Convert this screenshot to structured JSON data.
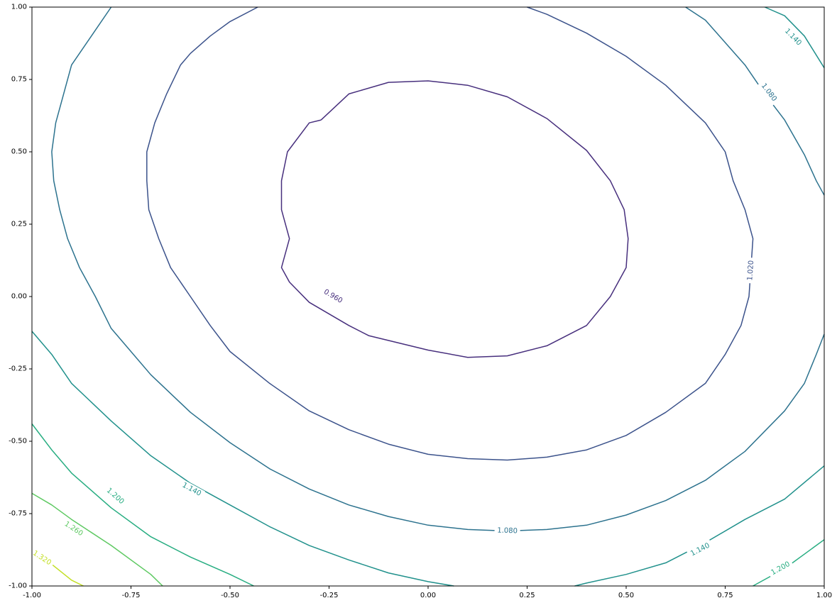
{
  "chart_data": {
    "type": "contour",
    "title": "",
    "xlabel": "",
    "ylabel": "",
    "xlim": [
      -1.0,
      1.0
    ],
    "ylim": [
      -1.0,
      1.0
    ],
    "xticks": [
      "-1.00",
      "-0.75",
      "-0.50",
      "-0.25",
      "0.00",
      "0.25",
      "0.50",
      "0.75",
      "1.00"
    ],
    "yticks": [
      "-1.00",
      "-0.75",
      "-0.50",
      "-0.25",
      "0.00",
      "0.25",
      "0.50",
      "0.75",
      "1.00"
    ],
    "grid": false,
    "colormap": "viridis",
    "levels": [
      {
        "value": 0.96,
        "label": "0.960",
        "color": "#472f7d",
        "paths": [
          [
            [
              -0.27,
              0.61
            ],
            [
              -0.2,
              0.7
            ],
            [
              -0.1,
              0.74
            ],
            [
              0.0,
              0.745
            ],
            [
              0.1,
              0.73
            ],
            [
              0.2,
              0.69
            ],
            [
              0.3,
              0.615
            ],
            [
              0.4,
              0.505
            ],
            [
              0.46,
              0.4
            ],
            [
              0.495,
              0.3
            ],
            [
              0.505,
              0.2
            ],
            [
              0.5,
              0.1
            ],
            [
              0.46,
              0.0
            ],
            [
              0.4,
              -0.1
            ],
            [
              0.3,
              -0.17
            ],
            [
              0.2,
              -0.205
            ],
            [
              0.1,
              -0.21
            ],
            [
              0.0,
              -0.185
            ],
            [
              -0.15,
              -0.135
            ],
            [
              -0.2,
              -0.1
            ],
            [
              -0.3,
              -0.02
            ],
            [
              -0.35,
              0.05
            ],
            [
              -0.37,
              0.1
            ],
            [
              -0.35,
              0.2
            ],
            [
              -0.37,
              0.3
            ],
            [
              -0.37,
              0.4
            ],
            [
              -0.355,
              0.5
            ],
            [
              -0.3,
              0.6
            ],
            [
              -0.27,
              0.61
            ]
          ]
        ],
        "label_at": [
          -0.24,
          0.0
        ]
      },
      {
        "value": 1.02,
        "label": "1.020",
        "color": "#3b528b",
        "paths": [
          [
            [
              -0.43,
              1.0
            ],
            [
              -0.5,
              0.95
            ],
            [
              -0.55,
              0.9
            ],
            [
              -0.6,
              0.84
            ],
            [
              -0.625,
              0.8
            ],
            [
              -0.66,
              0.7
            ],
            [
              -0.69,
              0.6
            ],
            [
              -0.71,
              0.5
            ],
            [
              -0.71,
              0.4
            ],
            [
              -0.705,
              0.3
            ],
            [
              -0.68,
              0.2
            ],
            [
              -0.65,
              0.1
            ],
            [
              -0.6,
              0.0
            ],
            [
              -0.55,
              -0.1
            ],
            [
              -0.5,
              -0.19
            ],
            [
              -0.4,
              -0.3
            ],
            [
              -0.3,
              -0.395
            ],
            [
              -0.2,
              -0.46
            ],
            [
              -0.1,
              -0.51
            ],
            [
              0.0,
              -0.545
            ],
            [
              0.1,
              -0.56
            ],
            [
              0.2,
              -0.565
            ],
            [
              0.3,
              -0.555
            ],
            [
              0.4,
              -0.53
            ],
            [
              0.5,
              -0.48
            ],
            [
              0.6,
              -0.4
            ],
            [
              0.7,
              -0.3
            ],
            [
              0.75,
              -0.2
            ],
            [
              0.79,
              -0.1
            ],
            [
              0.81,
              0.0
            ],
            [
              0.815,
              0.1
            ],
            [
              0.82,
              0.2
            ],
            [
              0.8,
              0.3
            ],
            [
              0.77,
              0.4
            ],
            [
              0.75,
              0.5
            ],
            [
              0.7,
              0.6
            ],
            [
              0.6,
              0.73
            ],
            [
              0.5,
              0.83
            ],
            [
              0.4,
              0.91
            ],
            [
              0.3,
              0.975
            ],
            [
              0.25,
              1.0
            ]
          ]
        ],
        "label_at": [
          0.815,
          0.09
        ]
      },
      {
        "value": 1.08,
        "label": "1.080",
        "color": "#2c728e",
        "paths": [
          [
            [
              -0.8,
              1.0
            ],
            [
              -0.85,
              0.9
            ],
            [
              -0.9,
              0.8
            ],
            [
              -0.94,
              0.6
            ],
            [
              -0.95,
              0.5
            ],
            [
              -0.945,
              0.4
            ],
            [
              -0.93,
              0.3
            ],
            [
              -0.91,
              0.2
            ],
            [
              -0.88,
              0.1
            ],
            [
              -0.84,
              0.0
            ],
            [
              -0.8,
              -0.11
            ],
            [
              -0.7,
              -0.27
            ],
            [
              -0.6,
              -0.4
            ],
            [
              -0.5,
              -0.505
            ],
            [
              -0.4,
              -0.595
            ],
            [
              -0.3,
              -0.665
            ],
            [
              -0.2,
              -0.72
            ],
            [
              -0.1,
              -0.76
            ],
            [
              0.0,
              -0.79
            ],
            [
              0.1,
              -0.805
            ],
            [
              0.2,
              -0.81
            ],
            [
              0.3,
              -0.805
            ],
            [
              0.4,
              -0.79
            ],
            [
              0.5,
              -0.755
            ],
            [
              0.6,
              -0.705
            ],
            [
              0.7,
              -0.635
            ],
            [
              0.8,
              -0.535
            ],
            [
              0.9,
              -0.395
            ],
            [
              0.95,
              -0.3
            ],
            [
              0.98,
              -0.2
            ],
            [
              1.0,
              -0.13
            ]
          ],
          [
            [
              0.65,
              1.0
            ],
            [
              0.7,
              0.955
            ],
            [
              0.8,
              0.8
            ],
            [
              0.85,
              0.7
            ],
            [
              0.9,
              0.61
            ],
            [
              0.95,
              0.49
            ],
            [
              0.98,
              0.4
            ],
            [
              1.0,
              0.35
            ]
          ]
        ],
        "label_at": [
          0.2,
          -0.81
        ],
        "label_at_2": [
          0.86,
          0.705
        ]
      },
      {
        "value": 1.14,
        "label": "1.140",
        "color": "#21918c",
        "paths": [
          [
            [
              -1.0,
              -0.12
            ],
            [
              -0.95,
              -0.2
            ],
            [
              -0.9,
              -0.3
            ],
            [
              -0.8,
              -0.43
            ],
            [
              -0.7,
              -0.55
            ],
            [
              -0.6,
              -0.645
            ],
            [
              -0.5,
              -0.72
            ],
            [
              -0.4,
              -0.795
            ],
            [
              -0.3,
              -0.86
            ],
            [
              -0.2,
              -0.91
            ],
            [
              -0.1,
              -0.955
            ],
            [
              0.0,
              -0.985
            ],
            [
              0.065,
              -1.0
            ]
          ],
          [
            [
              0.37,
              -1.0
            ],
            [
              0.4,
              -0.99
            ],
            [
              0.5,
              -0.96
            ],
            [
              0.6,
              -0.92
            ],
            [
              0.7,
              -0.85
            ],
            [
              0.8,
              -0.77
            ],
            [
              0.9,
              -0.7
            ],
            [
              1.0,
              -0.585
            ]
          ],
          [
            [
              0.85,
              1.0
            ],
            [
              0.9,
              0.97
            ],
            [
              0.95,
              0.9
            ],
            [
              1.0,
              0.79
            ]
          ]
        ],
        "label_at": [
          -0.597,
          -0.667
        ],
        "label_at_2": [
          0.687,
          -0.875
        ],
        "label_at_3": [
          0.921,
          0.896
        ]
      },
      {
        "value": 1.2,
        "label": "1.200",
        "color": "#27ad81",
        "paths": [
          [
            [
              -1.0,
              -0.44
            ],
            [
              -0.95,
              -0.53
            ],
            [
              -0.9,
              -0.61
            ],
            [
              -0.8,
              -0.73
            ],
            [
              -0.7,
              -0.83
            ],
            [
              -0.6,
              -0.9
            ],
            [
              -0.5,
              -0.96
            ],
            [
              -0.44,
              -1.0
            ]
          ],
          [
            [
              0.82,
              -1.0
            ],
            [
              0.9,
              -0.94
            ],
            [
              1.0,
              -0.84
            ]
          ]
        ],
        "label_at": [
          -0.79,
          -0.69
        ],
        "label_at_2": [
          0.89,
          -0.94
        ]
      },
      {
        "value": 1.26,
        "label": "1.260",
        "color": "#5ec962",
        "paths": [
          [
            [
              -1.0,
              -0.68
            ],
            [
              -0.95,
              -0.72
            ],
            [
              -0.9,
              -0.77
            ],
            [
              -0.8,
              -0.86
            ],
            [
              -0.7,
              -0.96
            ],
            [
              -0.67,
              -1.0
            ]
          ]
        ],
        "label_at": [
          -0.895,
          -0.803
        ]
      },
      {
        "value": 1.32,
        "label": "1.320",
        "color": "#c2df23",
        "paths": [
          [
            [
              -1.0,
              -0.88
            ],
            [
              -0.95,
              -0.925
            ],
            [
              -0.9,
              -0.98
            ],
            [
              -0.87,
              -1.0
            ]
          ]
        ],
        "label_at": [
          -0.975,
          -0.904
        ]
      }
    ]
  }
}
